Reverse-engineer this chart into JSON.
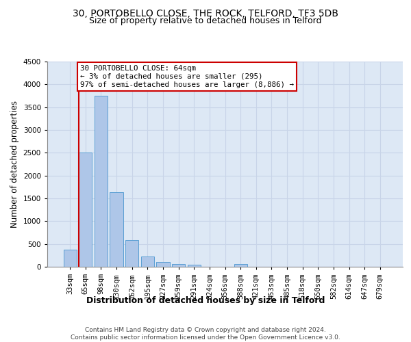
{
  "title1": "30, PORTOBELLO CLOSE, THE ROCK, TELFORD, TF3 5DB",
  "title2": "Size of property relative to detached houses in Telford",
  "xlabel": "Distribution of detached houses by size in Telford",
  "ylabel": "Number of detached properties",
  "categories": [
    "33sqm",
    "65sqm",
    "98sqm",
    "130sqm",
    "162sqm",
    "195sqm",
    "227sqm",
    "259sqm",
    "291sqm",
    "324sqm",
    "356sqm",
    "388sqm",
    "421sqm",
    "453sqm",
    "485sqm",
    "518sqm",
    "550sqm",
    "582sqm",
    "614sqm",
    "647sqm",
    "679sqm"
  ],
  "values": [
    370,
    2500,
    3750,
    1640,
    590,
    230,
    110,
    60,
    40,
    0,
    0,
    60,
    0,
    0,
    0,
    0,
    0,
    0,
    0,
    0,
    0
  ],
  "bar_color": "#aec6e8",
  "bar_edge_color": "#5a9fd4",
  "annotation_box_text": "30 PORTOBELLO CLOSE: 64sqm\n← 3% of detached houses are smaller (295)\n97% of semi-detached houses are larger (8,886) →",
  "annotation_box_color": "#ffffff",
  "annotation_box_edge_color": "#cc0000",
  "annotation_line_color": "#cc0000",
  "ylim": [
    0,
    4500
  ],
  "yticks": [
    0,
    500,
    1000,
    1500,
    2000,
    2500,
    3000,
    3500,
    4000,
    4500
  ],
  "grid_color": "#c8d4e8",
  "background_color": "#dde8f5",
  "footer": "Contains HM Land Registry data © Crown copyright and database right 2024.\nContains public sector information licensed under the Open Government Licence v3.0.",
  "title_fontsize": 10,
  "subtitle_fontsize": 9,
  "axis_label_fontsize": 8.5,
  "tick_fontsize": 7.5,
  "footer_fontsize": 6.5
}
